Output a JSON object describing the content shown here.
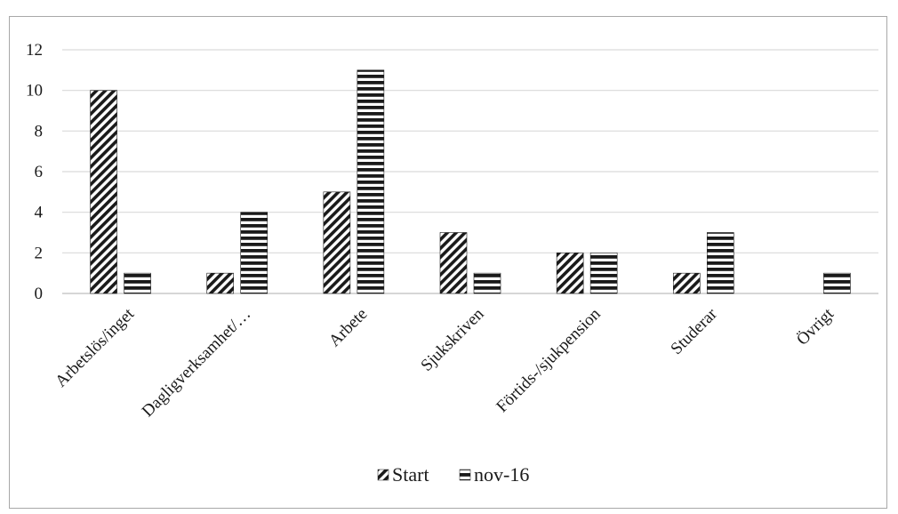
{
  "chart_data": {
    "type": "bar",
    "title": "",
    "xlabel": "",
    "ylabel": "",
    "ylim": [
      0,
      12
    ],
    "yticks": [
      0,
      2,
      4,
      6,
      8,
      10,
      12
    ],
    "grid": true,
    "legend_position": "bottom-center",
    "categories": [
      "Arbetslös/inget",
      "Dagligverksamhet/…",
      "Arbete",
      "Sjukskriven",
      "Förtids-/sjukpension",
      "Studerar",
      "Övrigt"
    ],
    "series": [
      {
        "name": "Start",
        "pattern": "diagonal-hatch",
        "values": [
          10,
          1,
          5,
          3,
          2,
          1,
          0
        ]
      },
      {
        "name": "nov-16",
        "pattern": "horizontal-stripes",
        "values": [
          1,
          4,
          11,
          1,
          2,
          3,
          1
        ]
      }
    ],
    "colors": {
      "ink": "#1a1a1a",
      "grid": "#d9d9d9",
      "frame": "#a8a8a8"
    }
  }
}
